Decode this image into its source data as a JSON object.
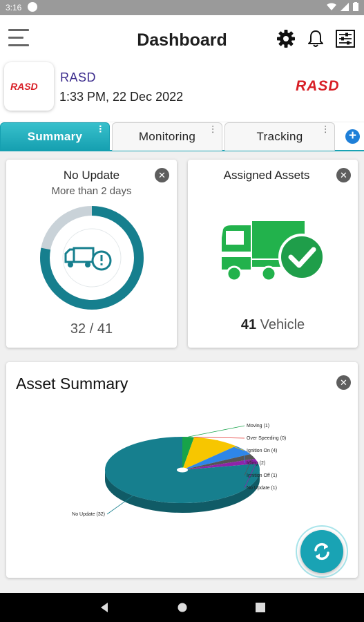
{
  "status_bar": {
    "time": "3:16"
  },
  "header": {
    "title": "Dashboard"
  },
  "company": {
    "name": "RASD",
    "datetime": "1:33 PM, 22 Dec 2022",
    "logo_text": "RASD"
  },
  "tabs": [
    {
      "label": "Summary",
      "active": true
    },
    {
      "label": "Monitoring",
      "active": false
    },
    {
      "label": "Tracking",
      "active": false
    }
  ],
  "add_tab_label": "+",
  "no_update_card": {
    "title": "No Update",
    "subtitle": "More than 2 days",
    "count_text": "32 / 41",
    "progress_value": 32,
    "progress_total": 41
  },
  "assigned_card": {
    "title": "Assigned Assets",
    "count": "41",
    "unit": "Vehicle"
  },
  "asset_summary": {
    "title": "Asset Summary",
    "chart_data": {
      "type": "pie",
      "slices": [
        {
          "label": "Moving (1)",
          "value": 1,
          "color": "#17a34a"
        },
        {
          "label": "Over Speeding (0)",
          "value": 0,
          "color": "#e53935"
        },
        {
          "label": "Ignition On (4)",
          "value": 4,
          "color": "#f7c600"
        },
        {
          "label": "Idling (2)",
          "value": 2,
          "color": "#2e86e8"
        },
        {
          "label": "Ignition Off (1)",
          "value": 1,
          "color": "#555555"
        },
        {
          "label": "No Update (1)",
          "value": 1,
          "color": "#8e24aa"
        },
        {
          "label": "No Update (32)",
          "value": 32,
          "color": "#167f8e"
        }
      ]
    }
  },
  "colors": {
    "accent": "#19a3b4",
    "brand_red": "#d81f26",
    "truck_green": "#22b24c"
  }
}
